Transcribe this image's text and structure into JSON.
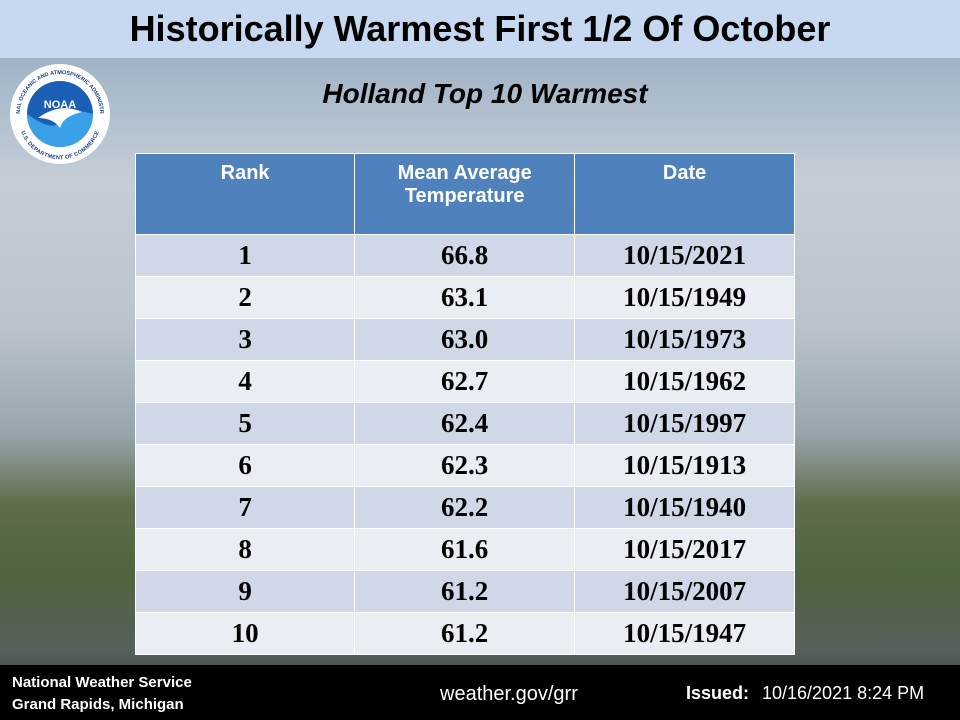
{
  "header": {
    "title": "Historically Warmest First 1/2 Of October"
  },
  "logo": {
    "name": "NOAA",
    "ring_top": "NATIONAL OCEANIC AND ATMOSPHERIC ADMINISTRATION",
    "ring_bottom": "U.S. DEPARTMENT OF COMMERCE"
  },
  "subtitle": "Holland Top 10 Warmest",
  "table": {
    "columns": [
      "Rank",
      "Mean Average Temperature",
      "Date"
    ],
    "rows": [
      [
        "1",
        "66.8",
        "10/15/2021"
      ],
      [
        "2",
        "63.1",
        "10/15/1949"
      ],
      [
        "3",
        "63.0",
        "10/15/1973"
      ],
      [
        "4",
        "62.7",
        "10/15/1962"
      ],
      [
        "5",
        "62.4",
        "10/15/1997"
      ],
      [
        "6",
        "62.3",
        "10/15/1913"
      ],
      [
        "7",
        "62.2",
        "10/15/1940"
      ],
      [
        "8",
        "61.6",
        "10/15/2017"
      ],
      [
        "9",
        "61.2",
        "10/15/2007"
      ],
      [
        "10",
        "61.2",
        "10/15/1947"
      ]
    ]
  },
  "footer": {
    "office": "National Weather Service",
    "location": "Grand Rapids, Michigan",
    "website": "weather.gov/grr",
    "issued_label": "Issued:",
    "issued": "10/16/2021 8:24 PM"
  }
}
